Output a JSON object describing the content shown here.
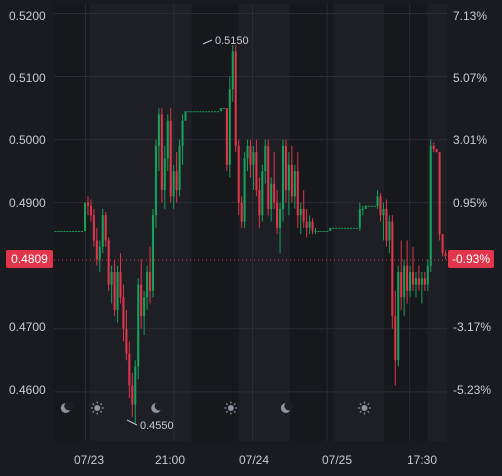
{
  "colors": {
    "background": "#191b20",
    "plot_background": "#1d1f25",
    "session_band": "#17181c",
    "grid": "#2a2d34",
    "up": "#16a05a",
    "down": "#e0354a",
    "axis_text": "#c9ccd2",
    "price_marker": "#e0354a"
  },
  "icons": [
    "moon-icon",
    "sun-icon",
    "moon-icon",
    "sun-icon",
    "moon-icon",
    "sun-icon"
  ],
  "chart_data": {
    "type": "candlestick",
    "title": "",
    "left_axis": {
      "ticks": [
        "0.5200",
        "0.5100",
        "0.5000",
        "0.4900",
        "0.4700",
        "0.4600"
      ],
      "tick_values": [
        0.52,
        0.51,
        0.5,
        0.49,
        0.47,
        0.46
      ],
      "range": [
        0.4522,
        0.5215
      ]
    },
    "right_axis": {
      "ticks": [
        "7.13%",
        "5.07%",
        "3.01%",
        "0.95%",
        "-3.17%",
        "-5.23%"
      ],
      "tick_values": [
        0.52,
        0.51,
        0.5,
        0.49,
        0.47,
        0.46
      ]
    },
    "x_axis": {
      "ticks": [
        "07/23",
        "21:00",
        "07/24",
        "07/25",
        "17:30"
      ],
      "tick_positions": [
        0.08,
        0.305,
        0.505,
        0.695,
        0.905
      ]
    },
    "current_price": {
      "value": 0.4809,
      "label": "0.4809",
      "change_label": "-0.93%"
    },
    "annotations": [
      {
        "label": "0.5150",
        "value": 0.515,
        "kind": "high"
      },
      {
        "label": "0.4550",
        "value": 0.455,
        "kind": "low"
      }
    ],
    "candles": [
      [
        0.4855,
        0.4855,
        0.4855,
        0.4855
      ],
      [
        0.4855,
        0.4855,
        0.4855,
        0.4855
      ],
      [
        0.4855,
        0.4855,
        0.4855,
        0.4855
      ],
      [
        0.4855,
        0.4855,
        0.4855,
        0.4855
      ],
      [
        0.4855,
        0.4855,
        0.4855,
        0.4855
      ],
      [
        0.4855,
        0.4855,
        0.4855,
        0.4855
      ],
      [
        0.4855,
        0.4855,
        0.4855,
        0.4855
      ],
      [
        0.4855,
        0.4855,
        0.4855,
        0.4855
      ],
      [
        0.4855,
        0.4855,
        0.4855,
        0.4855
      ],
      [
        0.4855,
        0.4855,
        0.4855,
        0.4855
      ],
      [
        0.4855,
        0.49,
        0.4855,
        0.49
      ],
      [
        0.49,
        0.491,
        0.488,
        0.4895
      ],
      [
        0.4895,
        0.4905,
        0.487,
        0.488
      ],
      [
        0.488,
        0.489,
        0.483,
        0.484
      ],
      [
        0.484,
        0.486,
        0.48,
        0.481
      ],
      [
        0.481,
        0.484,
        0.479,
        0.483
      ],
      [
        0.483,
        0.489,
        0.482,
        0.488
      ],
      [
        0.488,
        0.4885,
        0.483,
        0.484
      ],
      [
        0.484,
        0.4845,
        0.476,
        0.477
      ],
      [
        0.477,
        0.48,
        0.474,
        0.479
      ],
      [
        0.479,
        0.481,
        0.472,
        0.473
      ],
      [
        0.473,
        0.48,
        0.471,
        0.479
      ],
      [
        0.479,
        0.482,
        0.474,
        0.475
      ],
      [
        0.475,
        0.477,
        0.468,
        0.47
      ],
      [
        0.47,
        0.473,
        0.465,
        0.466
      ],
      [
        0.466,
        0.468,
        0.459,
        0.461
      ],
      [
        0.461,
        0.463,
        0.456,
        0.458
      ],
      [
        0.458,
        0.465,
        0.455,
        0.464
      ],
      [
        0.464,
        0.478,
        0.462,
        0.477
      ],
      [
        0.477,
        0.481,
        0.47,
        0.472
      ],
      [
        0.472,
        0.476,
        0.469,
        0.475
      ],
      [
        0.475,
        0.48,
        0.473,
        0.479
      ],
      [
        0.479,
        0.483,
        0.474,
        0.476
      ],
      [
        0.476,
        0.489,
        0.475,
        0.488
      ],
      [
        0.488,
        0.5,
        0.486,
        0.499
      ],
      [
        0.499,
        0.505,
        0.495,
        0.504
      ],
      [
        0.504,
        0.505,
        0.49,
        0.492
      ],
      [
        0.492,
        0.499,
        0.489,
        0.497
      ],
      [
        0.497,
        0.504,
        0.495,
        0.503
      ],
      [
        0.503,
        0.505,
        0.49,
        0.491
      ],
      [
        0.491,
        0.496,
        0.489,
        0.495
      ],
      [
        0.495,
        0.498,
        0.49,
        0.492
      ],
      [
        0.492,
        0.5,
        0.491,
        0.499
      ],
      [
        0.499,
        0.504,
        0.496,
        0.503
      ],
      [
        0.503,
        0.5045,
        0.503,
        0.5045
      ],
      [
        0.5045,
        0.5045,
        0.5045,
        0.5045
      ],
      [
        0.5045,
        0.5045,
        0.5045,
        0.5045
      ],
      [
        0.5045,
        0.5045,
        0.5045,
        0.5045
      ],
      [
        0.5045,
        0.5045,
        0.5045,
        0.5045
      ],
      [
        0.5045,
        0.5045,
        0.5045,
        0.5045
      ],
      [
        0.5045,
        0.5045,
        0.5045,
        0.5045
      ],
      [
        0.5045,
        0.5045,
        0.5045,
        0.5045
      ],
      [
        0.5045,
        0.5045,
        0.5045,
        0.5045
      ],
      [
        0.5045,
        0.5045,
        0.5045,
        0.5045
      ],
      [
        0.5045,
        0.5045,
        0.5045,
        0.5045
      ],
      [
        0.5045,
        0.5045,
        0.5045,
        0.5045
      ],
      [
        0.5045,
        0.505,
        0.5045,
        0.505
      ],
      [
        0.505,
        0.505,
        0.505,
        0.505
      ],
      [
        0.505,
        0.505,
        0.495,
        0.496
      ],
      [
        0.496,
        0.51,
        0.494,
        0.508
      ],
      [
        0.508,
        0.515,
        0.506,
        0.514
      ],
      [
        0.514,
        0.515,
        0.498,
        0.499
      ],
      [
        0.499,
        0.5,
        0.488,
        0.49
      ],
      [
        0.49,
        0.491,
        0.486,
        0.487
      ],
      [
        0.487,
        0.498,
        0.486,
        0.497
      ],
      [
        0.497,
        0.5,
        0.495,
        0.499
      ],
      [
        0.499,
        0.5,
        0.494,
        0.496
      ],
      [
        0.496,
        0.499,
        0.492,
        0.498
      ],
      [
        0.498,
        0.5,
        0.491,
        0.492
      ],
      [
        0.492,
        0.494,
        0.486,
        0.488
      ],
      [
        0.488,
        0.496,
        0.487,
        0.495
      ],
      [
        0.495,
        0.5,
        0.493,
        0.499
      ],
      [
        0.499,
        0.5,
        0.488,
        0.489
      ],
      [
        0.489,
        0.494,
        0.487,
        0.493
      ],
      [
        0.493,
        0.498,
        0.489,
        0.49
      ],
      [
        0.49,
        0.492,
        0.485,
        0.486
      ],
      [
        0.486,
        0.49,
        0.482,
        0.489
      ],
      [
        0.489,
        0.5,
        0.487,
        0.499
      ],
      [
        0.499,
        0.5,
        0.49,
        0.492
      ],
      [
        0.492,
        0.498,
        0.488,
        0.496
      ],
      [
        0.496,
        0.499,
        0.49,
        0.491
      ],
      [
        0.491,
        0.496,
        0.489,
        0.495
      ],
      [
        0.495,
        0.498,
        0.486,
        0.488
      ],
      [
        0.488,
        0.49,
        0.485,
        0.489
      ],
      [
        0.489,
        0.492,
        0.486,
        0.487
      ],
      [
        0.487,
        0.489,
        0.4845,
        0.486
      ],
      [
        0.486,
        0.488,
        0.485,
        0.487
      ],
      [
        0.487,
        0.4875,
        0.485,
        0.4855
      ],
      [
        0.4855,
        0.486,
        0.485,
        0.4855
      ],
      [
        0.4855,
        0.4855,
        0.4855,
        0.4855
      ],
      [
        0.4855,
        0.4855,
        0.4855,
        0.4855
      ],
      [
        0.4855,
        0.4855,
        0.4855,
        0.4855
      ],
      [
        0.4855,
        0.4855,
        0.4855,
        0.4855
      ],
      [
        0.4855,
        0.486,
        0.4855,
        0.486
      ],
      [
        0.486,
        0.486,
        0.486,
        0.486
      ],
      [
        0.486,
        0.486,
        0.486,
        0.486
      ],
      [
        0.486,
        0.486,
        0.486,
        0.486
      ],
      [
        0.486,
        0.486,
        0.486,
        0.486
      ],
      [
        0.486,
        0.486,
        0.486,
        0.486
      ],
      [
        0.486,
        0.486,
        0.486,
        0.486
      ],
      [
        0.486,
        0.486,
        0.486,
        0.486
      ],
      [
        0.486,
        0.486,
        0.486,
        0.486
      ],
      [
        0.486,
        0.486,
        0.486,
        0.486
      ],
      [
        0.486,
        0.49,
        0.4855,
        0.489
      ],
      [
        0.489,
        0.4895,
        0.488,
        0.489
      ],
      [
        0.489,
        0.4895,
        0.489,
        0.4895
      ],
      [
        0.4895,
        0.4895,
        0.4895,
        0.4895
      ],
      [
        0.4895,
        0.4895,
        0.4895,
        0.4895
      ],
      [
        0.4895,
        0.4895,
        0.4895,
        0.4895
      ],
      [
        0.4895,
        0.492,
        0.489,
        0.491
      ],
      [
        0.491,
        0.4915,
        0.487,
        0.488
      ],
      [
        0.488,
        0.49,
        0.484,
        0.489
      ],
      [
        0.489,
        0.4905,
        0.483,
        0.484
      ],
      [
        0.484,
        0.488,
        0.482,
        0.487
      ],
      [
        0.487,
        0.488,
        0.47,
        0.472
      ],
      [
        0.472,
        0.476,
        0.461,
        0.465
      ],
      [
        0.465,
        0.48,
        0.464,
        0.479
      ],
      [
        0.479,
        0.484,
        0.473,
        0.475
      ],
      [
        0.475,
        0.481,
        0.472,
        0.48
      ],
      [
        0.48,
        0.484,
        0.474,
        0.476
      ],
      [
        0.476,
        0.48,
        0.475,
        0.479
      ],
      [
        0.479,
        0.483,
        0.476,
        0.477
      ],
      [
        0.477,
        0.479,
        0.475,
        0.478
      ],
      [
        0.478,
        0.48,
        0.476,
        0.477
      ],
      [
        0.477,
        0.479,
        0.474,
        0.478
      ],
      [
        0.478,
        0.479,
        0.476,
        0.477
      ],
      [
        0.477,
        0.481,
        0.476,
        0.48
      ],
      [
        0.48,
        0.5,
        0.479,
        0.499
      ],
      [
        0.499,
        0.4995,
        0.498,
        0.4985
      ],
      [
        0.4985,
        0.4985,
        0.498,
        0.498
      ],
      [
        0.498,
        0.498,
        0.484,
        0.485
      ],
      [
        0.485,
        0.485,
        0.4815,
        0.482
      ],
      [
        0.482,
        0.4825,
        0.481,
        0.4815
      ]
    ]
  }
}
